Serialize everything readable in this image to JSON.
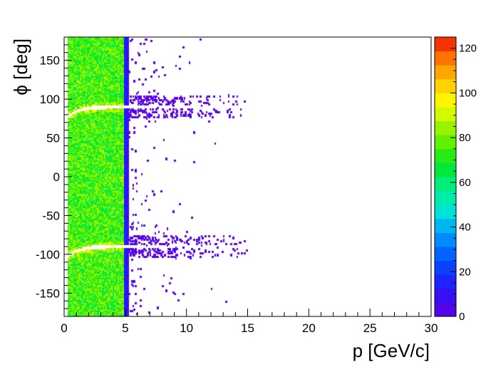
{
  "chart_data": {
    "type": "heatmap",
    "title": "",
    "xlabel": "p [GeV/c]",
    "ylabel": "ϕ [deg]",
    "xlim": [
      0,
      30
    ],
    "ylim": [
      -180,
      180
    ],
    "x_ticks": [
      0,
      5,
      10,
      15,
      20,
      25,
      30
    ],
    "y_ticks": [
      -150,
      -100,
      -50,
      0,
      50,
      100,
      150
    ],
    "z_range": [
      0,
      125
    ],
    "z_ticks": [
      0,
      20,
      40,
      60,
      80,
      100,
      120
    ],
    "grid": false,
    "colorbar": "right",
    "bins": {
      "x": 300,
      "y": 180
    },
    "regions": [
      {
        "name": "dense band",
        "p_range": [
          0.3,
          4.9
        ],
        "phi_range": [
          -180,
          180
        ],
        "typical_count": 75
      },
      {
        "name": "edge ridge",
        "p_range": [
          4.9,
          5.3
        ],
        "phi_range": [
          -180,
          180
        ],
        "typical_count": 12
      },
      {
        "name": "sparse tail",
        "p_range": [
          5.3,
          15
        ],
        "phi_range": [
          -180,
          180
        ],
        "typical_count": 1
      }
    ],
    "gaps_deg": [
      -90,
      90
    ]
  }
}
